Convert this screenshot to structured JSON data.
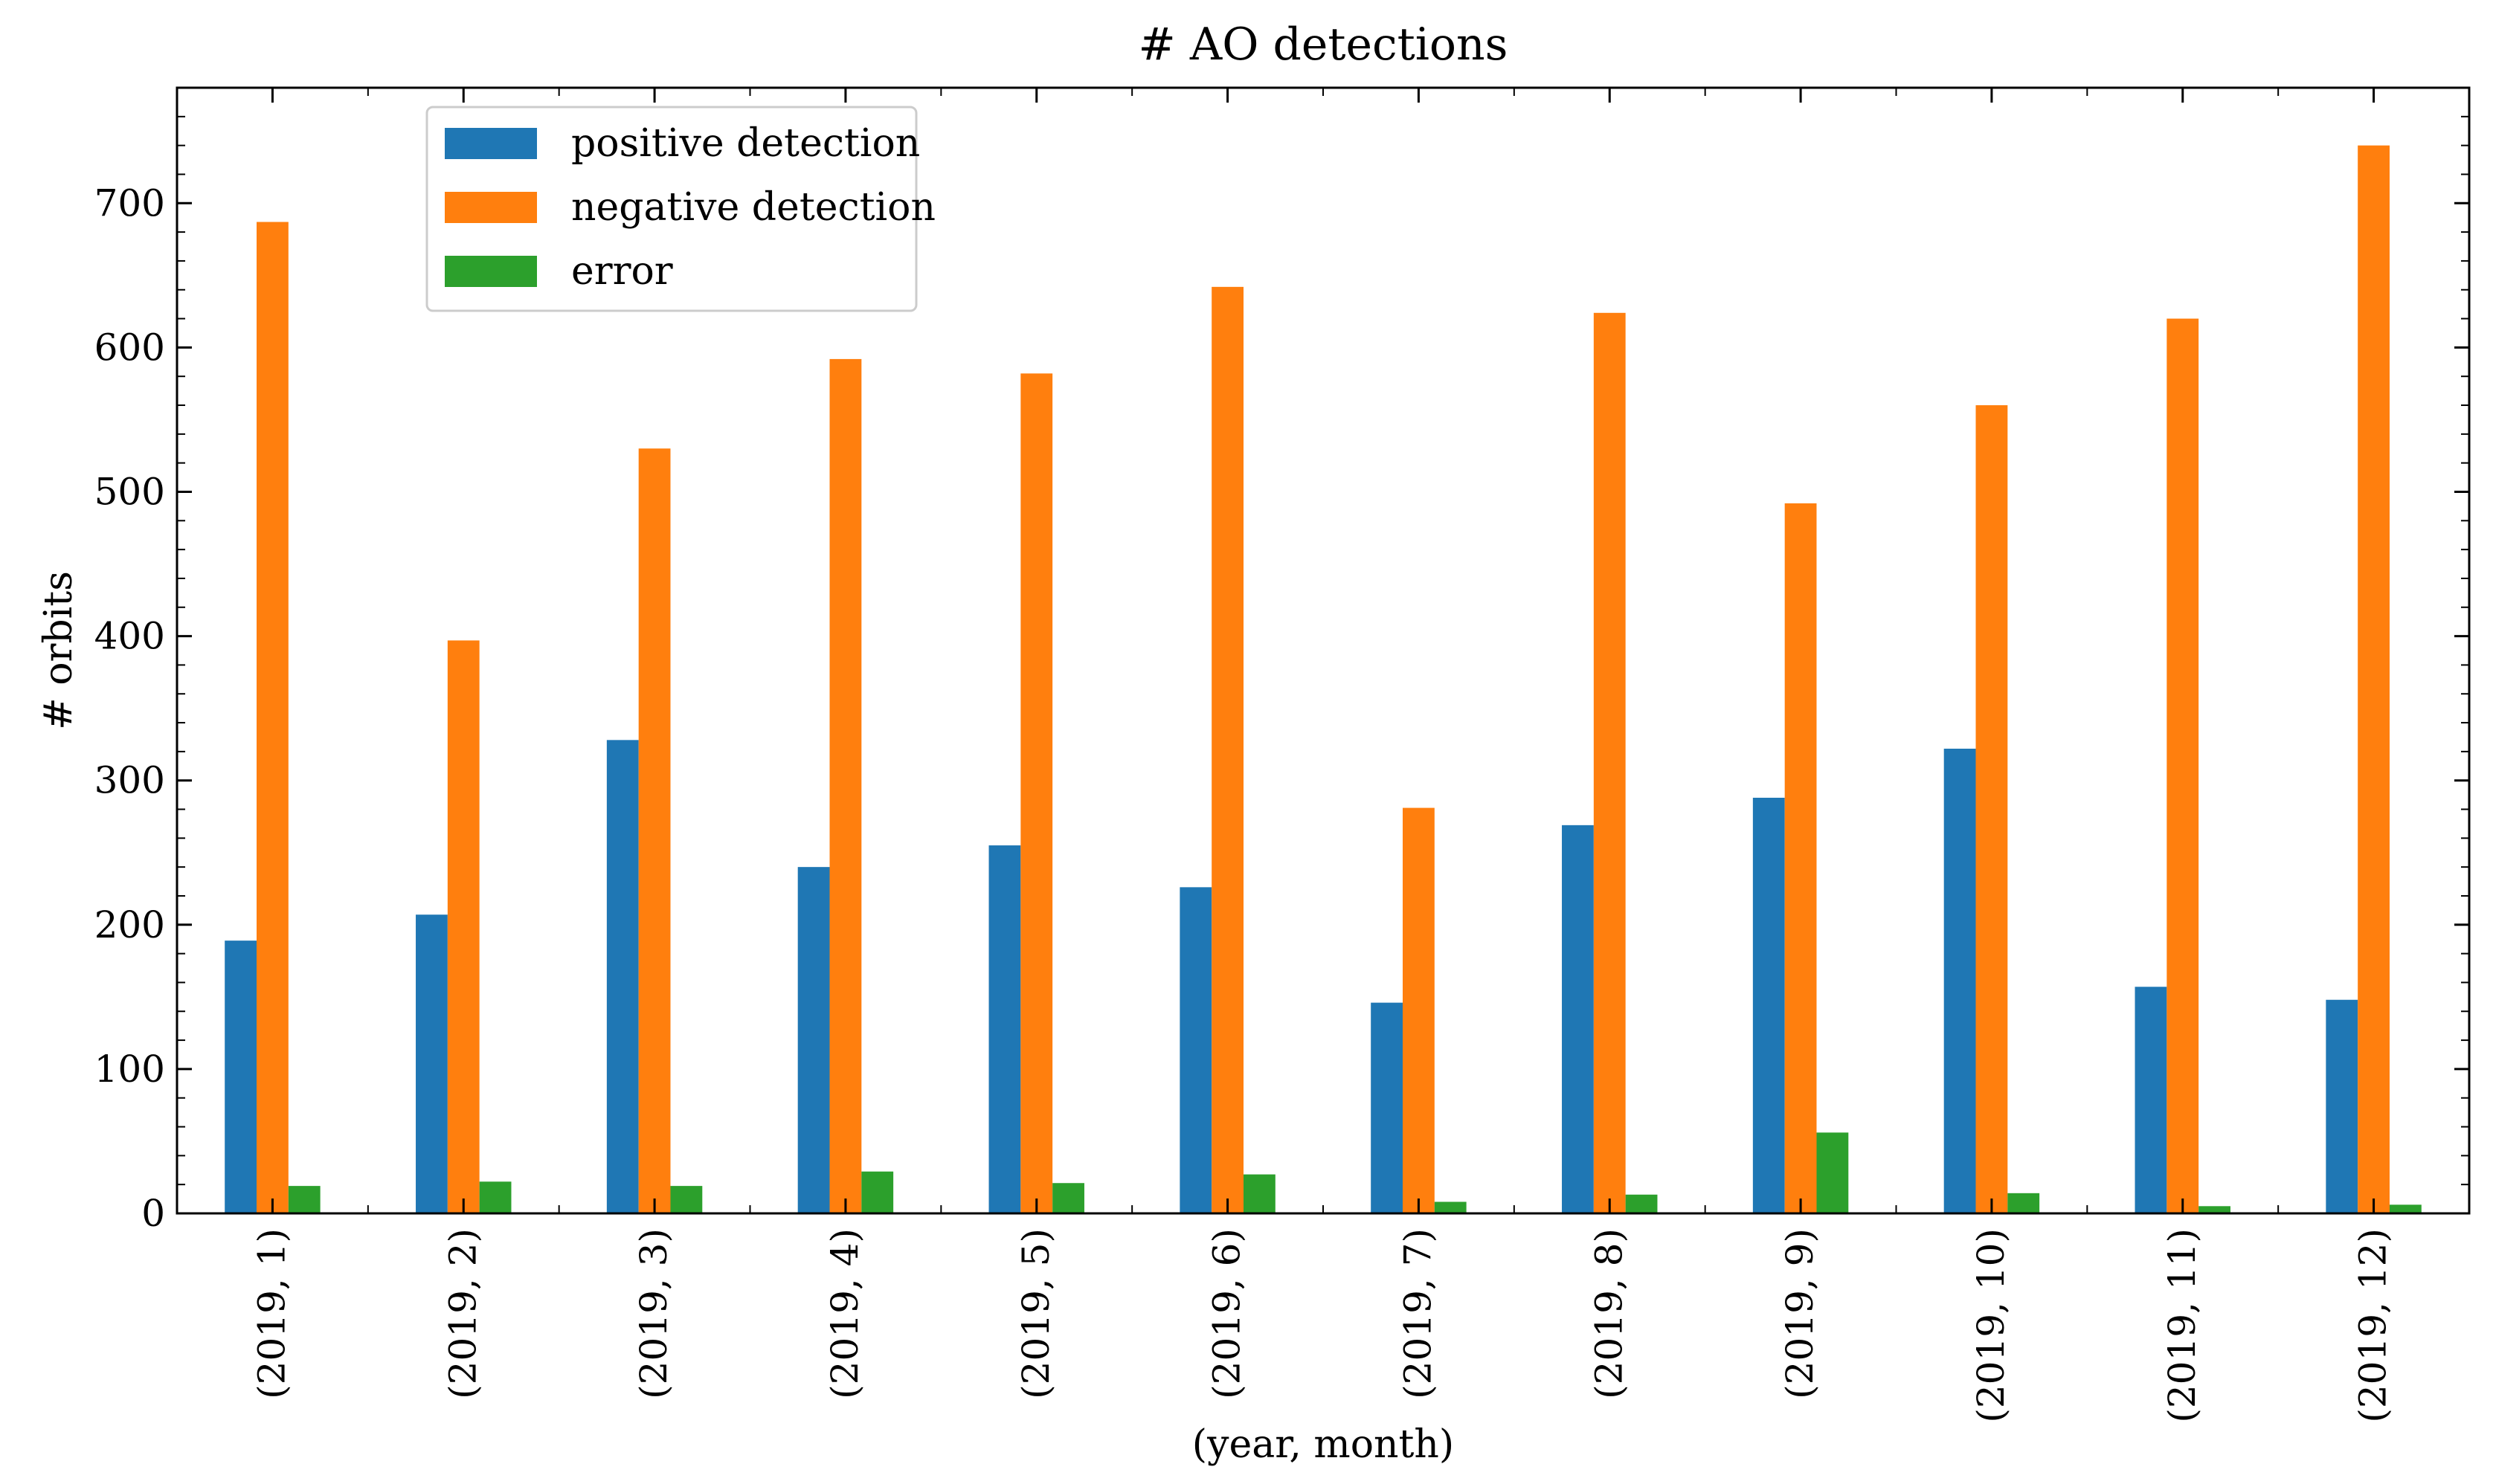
{
  "chart_data": {
    "type": "bar",
    "title": "# AO detections",
    "xlabel": "(year, month)",
    "ylabel": "# orbits",
    "ylim": [
      0,
      780
    ],
    "yticks": [
      0,
      100,
      200,
      300,
      400,
      500,
      600,
      700
    ],
    "grid": false,
    "legend_position": "top-left",
    "categories": [
      "(2019, 1)",
      "(2019, 2)",
      "(2019, 3)",
      "(2019, 4)",
      "(2019, 5)",
      "(2019, 6)",
      "(2019, 7)",
      "(2019, 8)",
      "(2019, 9)",
      "(2019, 10)",
      "(2019, 11)",
      "(2019, 12)"
    ],
    "series": [
      {
        "name": "positive detection",
        "color": "#1f77b4",
        "values": [
          189,
          207,
          328,
          240,
          255,
          226,
          146,
          269,
          288,
          322,
          157,
          148
        ]
      },
      {
        "name": "negative detection",
        "color": "#ff7f0e",
        "values": [
          687,
          397,
          530,
          592,
          582,
          642,
          281,
          624,
          492,
          560,
          620,
          740
        ]
      },
      {
        "name": "error",
        "color": "#2ca02c",
        "values": [
          19,
          22,
          19,
          29,
          21,
          27,
          8,
          13,
          56,
          14,
          5,
          6
        ]
      }
    ]
  }
}
